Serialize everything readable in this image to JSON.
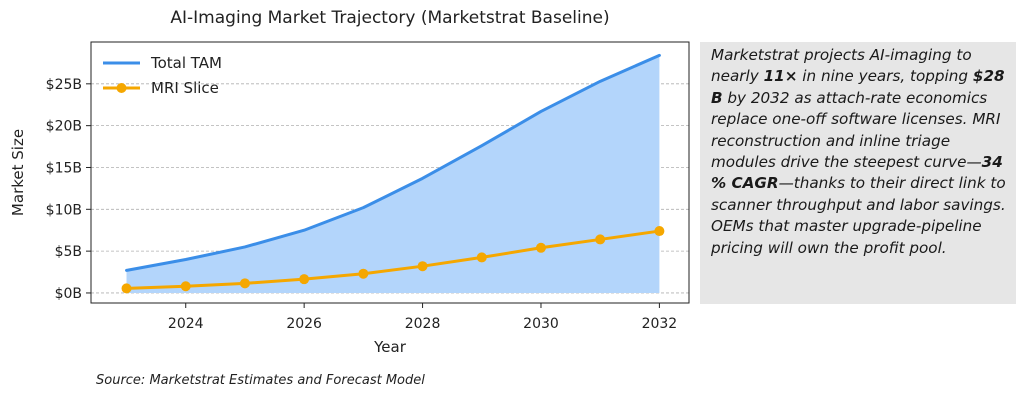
{
  "chart_data": {
    "type": "line",
    "title": "AI-Imaging Market Trajectory (Marketstrat Baseline)",
    "xlabel": "Year",
    "ylabel": "Market Size",
    "x": [
      2023,
      2024,
      2025,
      2026,
      2027,
      2028,
      2029,
      2030,
      2031,
      2032
    ],
    "xlim": [
      2022.4,
      2032.5
    ],
    "ylim": [
      -1.2,
      30
    ],
    "x_ticks": [
      2024,
      2026,
      2028,
      2030,
      2032
    ],
    "y_ticks": [
      0,
      5,
      10,
      15,
      20,
      25
    ],
    "y_tick_labels": [
      "$0B",
      "$5B",
      "$10B",
      "$15B",
      "$20B",
      "$25B"
    ],
    "grid": "horizontal dashed",
    "legend_position": "top-left",
    "series": [
      {
        "name": "Total TAM",
        "color": "#3b8ee8",
        "fill": "#b3d5fb",
        "values": [
          2.7,
          4.0,
          5.5,
          7.5,
          10.2,
          13.7,
          17.6,
          21.7,
          25.3,
          28.4
        ]
      },
      {
        "name": "MRI Slice",
        "color": "#f5a700",
        "marker": "circle",
        "values": [
          0.55,
          0.8,
          1.15,
          1.65,
          2.3,
          3.2,
          4.25,
          5.4,
          6.4,
          7.4
        ]
      }
    ]
  },
  "callout": {
    "t1": "Marketstrat projects AI-imaging to nearly ",
    "b1": "11×",
    "t2": " in nine years, topping ",
    "b2": "$28 B",
    "t3": " by 2032 as attach-rate economics replace one-off software licenses. MRI reconstruction and inline triage modules drive the steepest curve—",
    "b3": "34 % CAGR",
    "t4": "—thanks to their direct link to scanner throughput and labor savings. OEMs that master upgrade-pipeline pricing will own the profit pool."
  },
  "source": "Source: Marketstrat Estimates and Forecast Model"
}
